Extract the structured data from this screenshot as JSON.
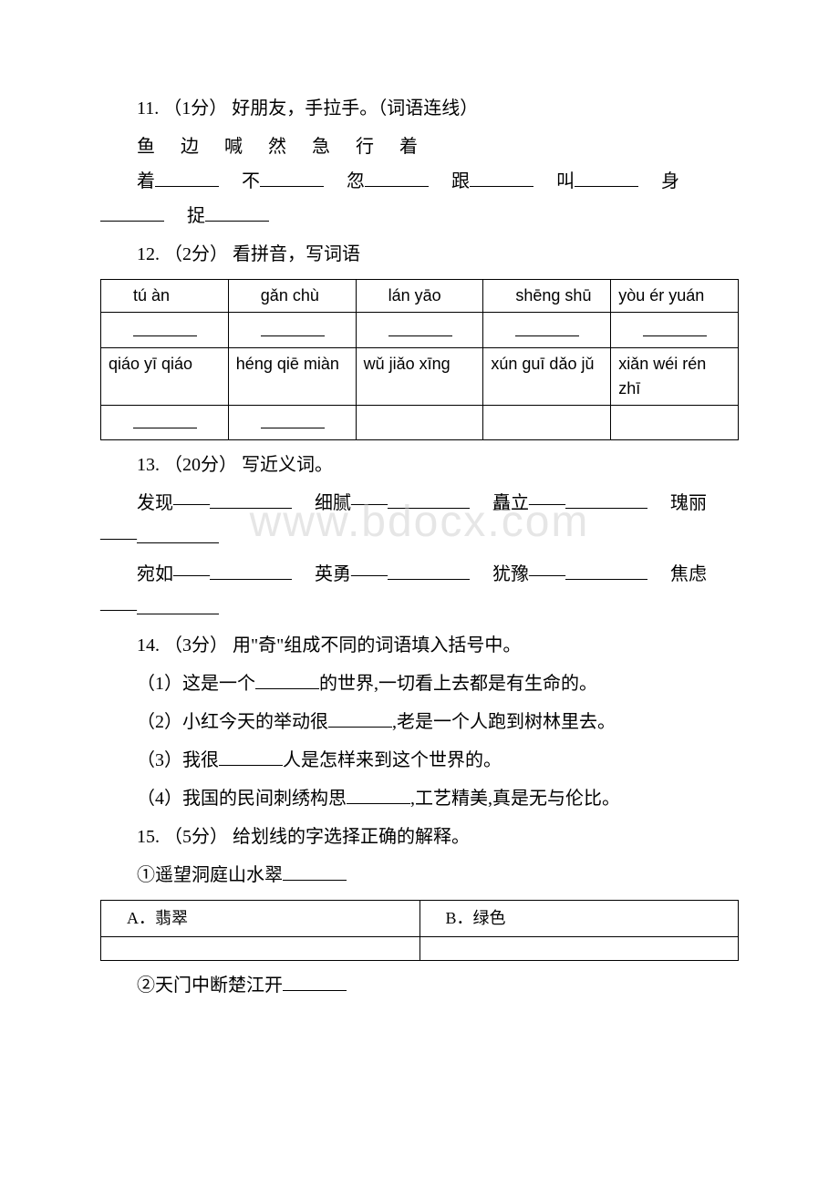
{
  "q11": {
    "number": "11.",
    "points": "（1分）",
    "title": "好朋友，手拉手。（词语连线）",
    "chars": "鱼　边　喊　然　急　行　着",
    "line1_parts": [
      "着",
      "不",
      "忽",
      "跟",
      "叫"
    ],
    "line2_parts": [
      "身",
      "捉"
    ]
  },
  "q12": {
    "number": "12.",
    "points": "（2分）",
    "title": "看拼音，写词语",
    "pinyin_row1": [
      "tú àn",
      "gǎn chù",
      "lán yāo",
      "shēng shū",
      "yòu ér yuán"
    ],
    "pinyin_row2": [
      "qiáo yī qiáo",
      "héng qiē miàn",
      "wǔ jiǎo xīng",
      "xún guī dǎo jǔ",
      "xiǎn wéi rén zhī"
    ]
  },
  "q13": {
    "number": "13.",
    "points": "（20分）",
    "title": "写近义词。",
    "row1": [
      "发现——",
      "细腻——",
      "矗立——",
      "瑰丽——"
    ],
    "row2": [
      "宛如——",
      "英勇——",
      "犹豫——",
      "焦虑——"
    ]
  },
  "q14": {
    "number": "14.",
    "points": "（3分）",
    "title": "用\"奇\"组成不同的词语填入括号中。",
    "sub1_a": "（1）这是一个",
    "sub1_b": "的世界,一切看上去都是有生命的。",
    "sub2_a": "（2）小红今天的举动很",
    "sub2_b": ",老是一个人跑到树林里去。",
    "sub3_a": "（3）我很",
    "sub3_b": "人是怎样来到这个世界的。",
    "sub4_a": "（4）我国的民间刺绣构思",
    "sub4_b": ",工艺精美,真是无与伦比。"
  },
  "q15": {
    "number": "15.",
    "points": "（5分）",
    "title": "给划线的字选择正确的解释。",
    "item1": "①遥望洞庭山水翠",
    "opt1a": "A．翡翠",
    "opt1b": "B．绿色",
    "item2": "②天门中断楚江开"
  },
  "watermark": "www.bdocx.com"
}
